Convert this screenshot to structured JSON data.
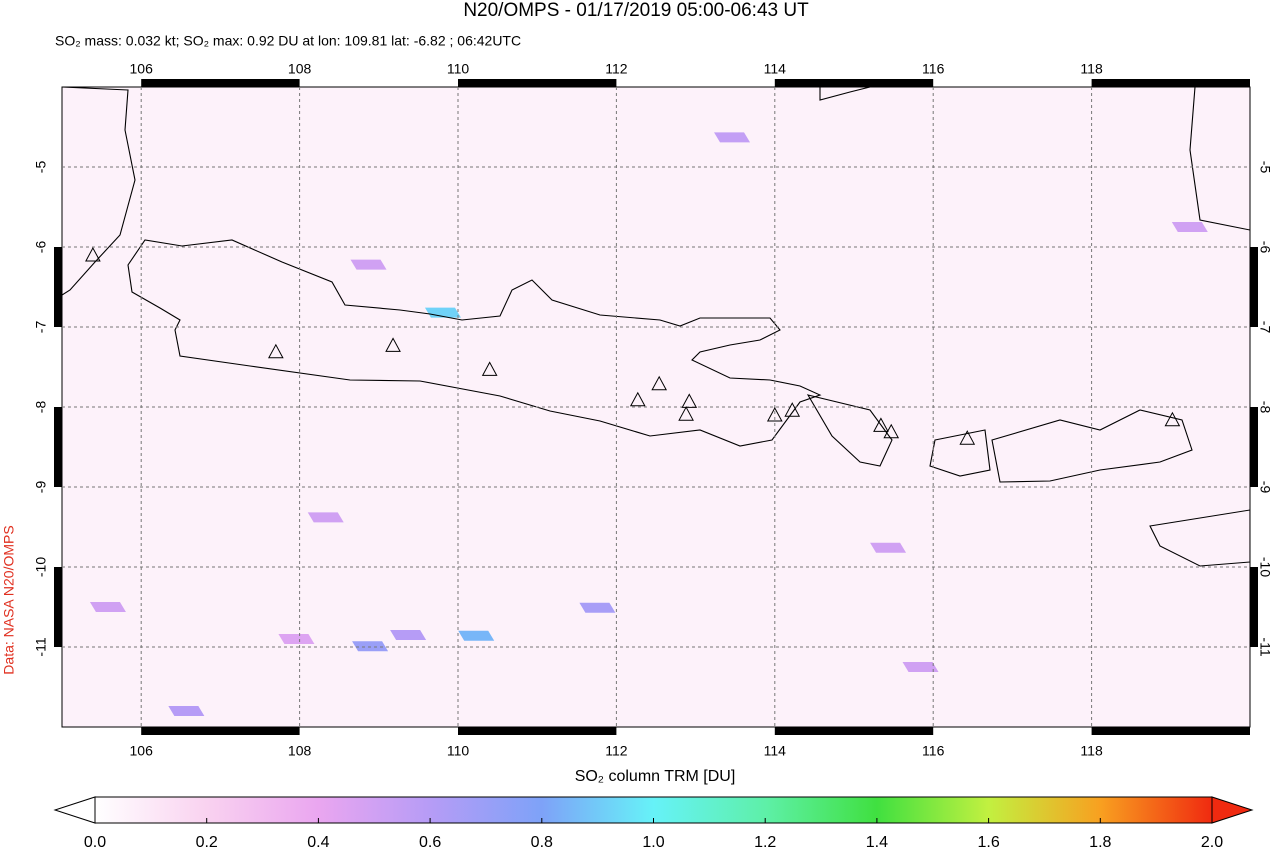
{
  "header": {
    "title": "N20/OMPS - 01/17/2019 05:00-06:43 UT",
    "subtitle": "SO₂ mass: 0.032 kt; SO₂ max: 0.92 DU at lon: 109.81 lat: -6.82 ; 06:42UTC"
  },
  "credit": "Data: NASA N20/OMPS",
  "map": {
    "xlim": [
      105,
      120
    ],
    "ylim": [
      -12,
      -4
    ],
    "xticks": [
      106,
      108,
      110,
      112,
      114,
      116,
      118
    ],
    "yticks": [
      -5,
      -6,
      -7,
      -8,
      -9,
      -10,
      -11
    ],
    "volcanoes": {
      "lon": [
        105.39,
        107.7,
        109.18,
        110.4,
        112.27,
        112.54,
        112.92,
        112.88,
        114.0,
        114.22,
        115.34,
        115.47,
        116.43,
        119.02
      ],
      "lat": [
        -6.1,
        -7.31,
        -7.23,
        -7.53,
        -7.91,
        -7.71,
        -7.93,
        -8.09,
        -8.1,
        -8.04,
        -8.23,
        -8.31,
        -8.39,
        -8.16
      ]
    },
    "pixels": {
      "lon": [
        109.81,
        110.23,
        108.89,
        109.37,
        111.76,
        113.46,
        115.43,
        115.84,
        108.87,
        108.33,
        107.96,
        106.57,
        105.58,
        119.24
      ],
      "lat": [
        -6.82,
        -10.86,
        -10.99,
        -10.85,
        -10.51,
        -4.63,
        -9.76,
        -11.25,
        -6.22,
        -9.38,
        -10.9,
        -11.8,
        -10.5,
        -5.75
      ],
      "values": [
        0.92,
        0.85,
        0.7,
        0.6,
        0.65,
        0.55,
        0.5,
        0.5,
        0.5,
        0.5,
        0.45,
        0.6,
        0.5,
        0.5
      ]
    }
  },
  "colorbar": {
    "label": "SO₂ column TRM [DU]",
    "lim": [
      0,
      2
    ],
    "colorscale": [
      "#ffffff",
      "#f9d2f0",
      "#eaa6f0",
      "#b69cf6",
      "#7ea2f8",
      "#66f2f8",
      "#5ef0a8",
      "#40e040",
      "#c2f040",
      "#f8a020",
      "#f02a10"
    ],
    "ticks": [
      {
        "value": 0,
        "label": "0.0"
      },
      {
        "value": 0.2,
        "label": "0.2"
      },
      {
        "value": 0.4,
        "label": "0.4"
      },
      {
        "value": 0.6,
        "label": "0.6"
      },
      {
        "value": 0.8,
        "label": "0.8"
      },
      {
        "value": 1.0,
        "label": "1.0"
      },
      {
        "value": 1.2,
        "label": "1.2"
      },
      {
        "value": 1.4,
        "label": "1.4"
      },
      {
        "value": 1.6,
        "label": "1.6"
      },
      {
        "value": 1.8,
        "label": "1.8"
      },
      {
        "value": 2.0,
        "label": "2.0"
      }
    ]
  }
}
